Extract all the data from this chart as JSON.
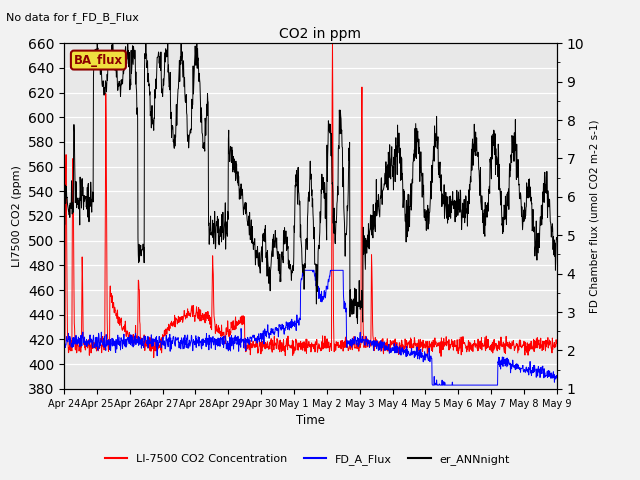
{
  "title": "CO2 in ppm",
  "top_left_text": "No data for f_FD_B_Flux",
  "ylabel_left": "LI7500 CO2 (ppm)",
  "ylabel_right": "FD Chamber flux (umol CO2 m-2 s-1)",
  "xlabel": "Time",
  "ylim_left": [
    380,
    660
  ],
  "ylim_right": [
    1.0,
    10.0
  ],
  "ba_flux_label": "BA_flux",
  "legend_labels": [
    "LI-7500 CO2 Concentration",
    "FD_A_Flux",
    "er_ANNnight"
  ],
  "legend_colors": [
    "red",
    "blue",
    "black"
  ],
  "bg_color": "#e8e8e8",
  "fig_color": "#f2f2f2",
  "xtick_labels": [
    "Apr 24",
    "Apr 25",
    "Apr 26",
    "Apr 27",
    "Apr 28",
    "Apr 29",
    "Apr 30",
    "May 1",
    "May 2",
    "May 3",
    "May 4",
    "May 5",
    "May 6",
    "May 7",
    "May 8",
    "May 9"
  ],
  "yticks_left": [
    380,
    400,
    420,
    440,
    460,
    480,
    500,
    520,
    540,
    560,
    580,
    600,
    620,
    640,
    660
  ],
  "yticks_right": [
    1.0,
    2.0,
    3.0,
    4.0,
    5.0,
    6.0,
    7.0,
    8.0,
    9.0,
    10.0
  ]
}
